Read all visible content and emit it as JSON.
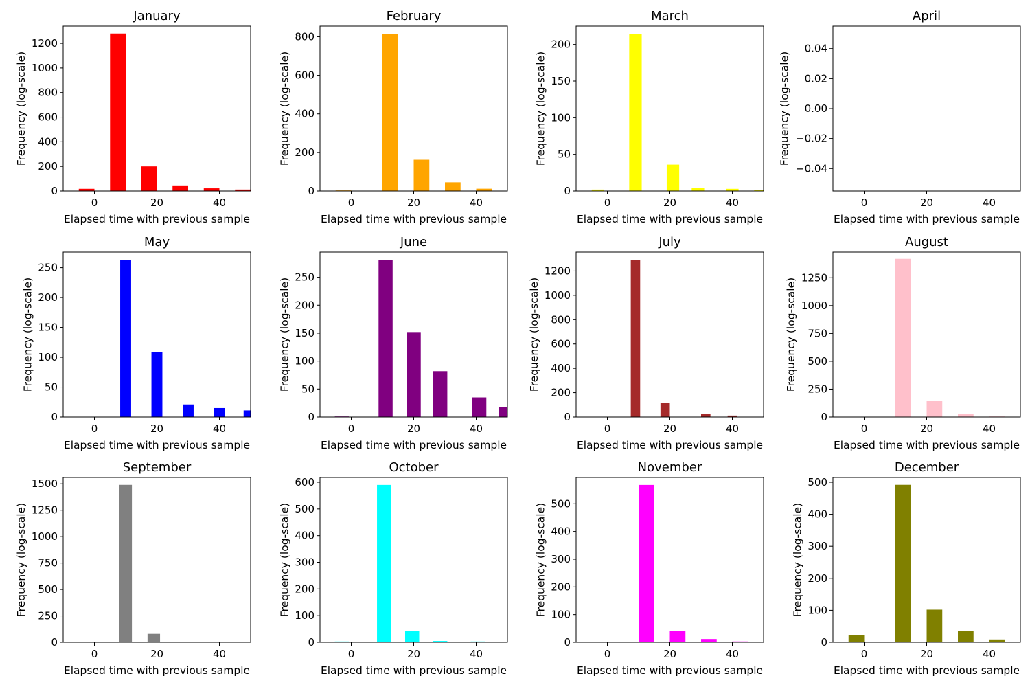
{
  "chart_data": [
    {
      "type": "bar",
      "title": "January",
      "color": "#ff0000",
      "xlabel": "Elapsed time with previous sample",
      "ylabel": "Frequency (log-scale)",
      "xlim": [
        -10,
        50
      ],
      "ylim": [
        0,
        1340
      ],
      "xticks": [
        0,
        20,
        40
      ],
      "yticks": [
        0,
        200,
        400,
        600,
        800,
        1000,
        1200
      ],
      "bar_width": 5,
      "x": [
        -2.5,
        7.5,
        17.5,
        27.5,
        37.5,
        47.5
      ],
      "values": [
        18,
        1280,
        200,
        40,
        22,
        12
      ]
    },
    {
      "type": "bar",
      "title": "February",
      "color": "#ffa500",
      "xlabel": "Elapsed time with previous sample",
      "ylabel": "Frequency (log-scale)",
      "xlim": [
        -10,
        50
      ],
      "ylim": [
        0,
        855
      ],
      "xticks": [
        0,
        20,
        40
      ],
      "yticks": [
        0,
        200,
        400,
        600,
        800
      ],
      "bar_width": 5,
      "x": [
        -2.5,
        12.5,
        22.5,
        32.5,
        42.5
      ],
      "values": [
        3,
        815,
        162,
        45,
        12
      ]
    },
    {
      "type": "bar",
      "title": "March",
      "color": "#ffff00",
      "xlabel": "Elapsed time with previous sample",
      "ylabel": "Frequency (log-scale)",
      "xlim": [
        -10,
        50
      ],
      "ylim": [
        0,
        225
      ],
      "xticks": [
        0,
        20,
        40
      ],
      "yticks": [
        0,
        50,
        100,
        150,
        200
      ],
      "bar_width": 4,
      "x": [
        -3,
        9,
        21,
        29,
        40,
        49
      ],
      "values": [
        2,
        214,
        36,
        4,
        3,
        1
      ]
    },
    {
      "type": "bar",
      "title": "April",
      "color": "#000000",
      "xlabel": "Elapsed time with previous sample",
      "ylabel": "Frequency (log-scale)",
      "xlim": [
        -10,
        50
      ],
      "ylim": [
        -0.055,
        0.055
      ],
      "xticks": [
        0,
        20,
        40
      ],
      "yticks": [
        -0.04,
        -0.02,
        0.0,
        0.02,
        0.04
      ],
      "ytick_format": "fixed2",
      "bar_width": 4,
      "x": [],
      "values": []
    },
    {
      "type": "bar",
      "title": "May",
      "color": "#0000ff",
      "xlabel": "Elapsed time with previous sample",
      "ylabel": "Frequency (log-scale)",
      "xlim": [
        -10,
        50
      ],
      "ylim": [
        0,
        276
      ],
      "xticks": [
        0,
        20,
        40
      ],
      "yticks": [
        0,
        50,
        100,
        150,
        200,
        250
      ],
      "bar_width": 3.5,
      "x": [
        10,
        20,
        30,
        40,
        49.5
      ],
      "values": [
        263,
        109,
        21,
        15,
        11
      ]
    },
    {
      "type": "bar",
      "title": "June",
      "color": "#800080",
      "xlabel": "Elapsed time with previous sample",
      "ylabel": "Frequency (log-scale)",
      "xlim": [
        -10,
        50
      ],
      "ylim": [
        0,
        295
      ],
      "xticks": [
        0,
        20,
        40
      ],
      "yticks": [
        0,
        50,
        100,
        150,
        200,
        250
      ],
      "bar_width": 4.5,
      "x": [
        -3,
        11,
        20,
        28.5,
        41,
        49.5
      ],
      "values": [
        1,
        281,
        152,
        82,
        35,
        18
      ]
    },
    {
      "type": "bar",
      "title": "July",
      "color": "#a52a2a",
      "xlabel": "Elapsed time with previous sample",
      "ylabel": "Frequency (log-scale)",
      "xlim": [
        -10,
        50
      ],
      "ylim": [
        0,
        1355
      ],
      "xticks": [
        0,
        20,
        40
      ],
      "yticks": [
        0,
        200,
        400,
        600,
        800,
        1000,
        1200
      ],
      "bar_width": 3,
      "x": [
        9,
        18.5,
        31.5,
        40,
        49.5
      ],
      "values": [
        1290,
        115,
        28,
        12,
        2
      ]
    },
    {
      "type": "bar",
      "title": "August",
      "color": "#ffc0cb",
      "xlabel": "Elapsed time with previous sample",
      "ylabel": "Frequency (log-scale)",
      "xlim": [
        -10,
        50
      ],
      "ylim": [
        0,
        1480
      ],
      "xticks": [
        0,
        20,
        40
      ],
      "yticks": [
        0,
        250,
        500,
        750,
        1000,
        1250
      ],
      "bar_width": 5,
      "x": [
        12.5,
        22.5,
        32.5,
        42.5
      ],
      "values": [
        1420,
        148,
        30,
        5
      ]
    },
    {
      "type": "bar",
      "title": "September",
      "color": "#808080",
      "xlabel": "Elapsed time with previous sample",
      "ylabel": "Frequency (log-scale)",
      "xlim": [
        -10,
        50
      ],
      "ylim": [
        0,
        1560
      ],
      "xticks": [
        0,
        20,
        40
      ],
      "yticks": [
        0,
        250,
        500,
        750,
        1000,
        1250,
        1500
      ],
      "bar_width": 4,
      "x": [
        -3,
        10,
        19,
        31,
        49
      ],
      "values": [
        5,
        1490,
        80,
        5,
        5
      ]
    },
    {
      "type": "bar",
      "title": "October",
      "color": "#00ffff",
      "xlabel": "Elapsed time with previous sample",
      "ylabel": "Frequency (log-scale)",
      "xlim": [
        -10,
        50
      ],
      "ylim": [
        0,
        618
      ],
      "xticks": [
        0,
        20,
        40
      ],
      "yticks": [
        0,
        100,
        200,
        300,
        400,
        500,
        600
      ],
      "bar_width": 4.5,
      "x": [
        -3,
        10.5,
        19.5,
        28.5,
        40.5,
        49.5
      ],
      "values": [
        3,
        590,
        42,
        5,
        3,
        2
      ]
    },
    {
      "type": "bar",
      "title": "November",
      "color": "#ff00ff",
      "xlabel": "Elapsed time with previous sample",
      "ylabel": "Frequency (log-scale)",
      "xlim": [
        -10,
        50
      ],
      "ylim": [
        0,
        595
      ],
      "xticks": [
        0,
        20,
        40
      ],
      "yticks": [
        0,
        100,
        200,
        300,
        400,
        500
      ],
      "bar_width": 5,
      "x": [
        -2.5,
        12.5,
        22.5,
        32.5,
        42.5
      ],
      "values": [
        2,
        568,
        42,
        12,
        3
      ]
    },
    {
      "type": "bar",
      "title": "December",
      "color": "#808000",
      "xlabel": "Elapsed time with previous sample",
      "ylabel": "Frequency (log-scale)",
      "xlim": [
        -10,
        50
      ],
      "ylim": [
        0,
        515
      ],
      "xticks": [
        0,
        20,
        40
      ],
      "yticks": [
        0,
        100,
        200,
        300,
        400,
        500
      ],
      "bar_width": 5,
      "x": [
        -2.5,
        12.5,
        22.5,
        32.5,
        42.5
      ],
      "values": [
        22,
        492,
        102,
        35,
        9
      ]
    }
  ]
}
